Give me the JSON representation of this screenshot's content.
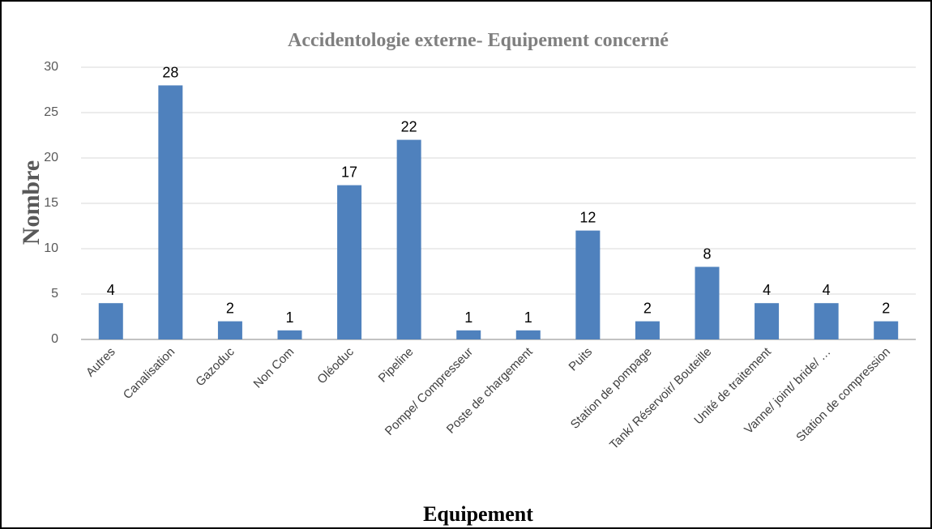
{
  "chart_data": {
    "type": "bar",
    "title": "Accidentologie externe- Equipement concerné",
    "x_label": "Equipement",
    "y_label": "Nombre",
    "categories": [
      "Autres",
      "Canalisation",
      "Gazoduc",
      "Non Com",
      "Oléoduc",
      "Pipeline",
      "Pompe/ Compresseur",
      "Poste de chargement",
      "Puits",
      "Station de pompage",
      "Tank/ Réservoir/ Bouteille",
      "Unité de traitement",
      "Vanne/ joint/ bride/ …",
      "Station de compression"
    ],
    "values": [
      4,
      28,
      2,
      1,
      17,
      22,
      1,
      1,
      12,
      2,
      8,
      4,
      4,
      2
    ],
    "color": "#4f81bd",
    "ylim": [
      0,
      30
    ],
    "yticks": [
      0,
      5,
      10,
      15,
      20,
      25,
      30
    ],
    "grid": true
  }
}
